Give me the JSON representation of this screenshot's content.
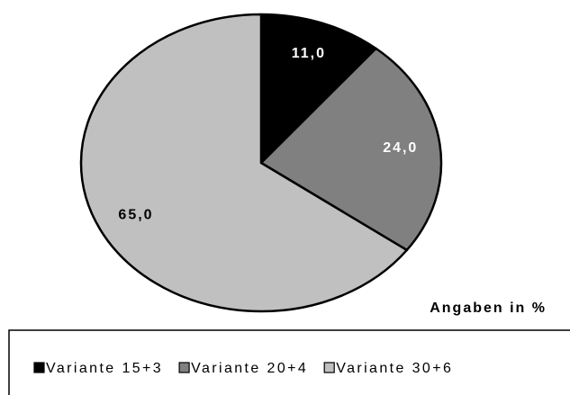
{
  "chart_data": {
    "type": "pie",
    "annotation": "Angaben in %",
    "categories": [
      "Variante 15+3",
      "Variante 20+4",
      "Variante 30+6"
    ],
    "values": [
      11.0,
      24.0,
      65.0
    ],
    "value_labels": [
      "11,0",
      "24,0",
      "65,0"
    ],
    "colors": [
      "#000000",
      "#808080",
      "#c0c0c0"
    ]
  }
}
